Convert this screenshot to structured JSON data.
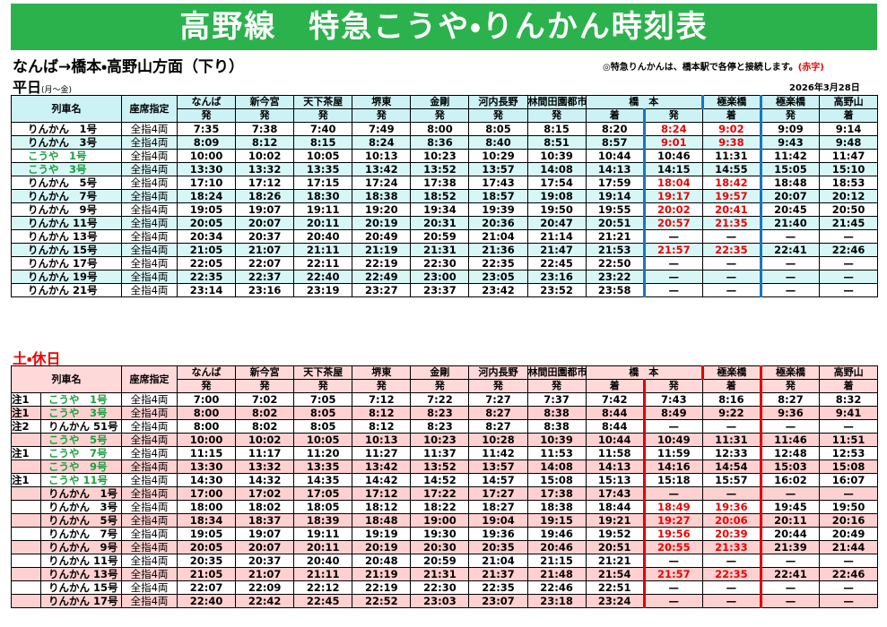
{
  "title": "高野線　特急こうや・りんかん時刻表",
  "direction": "なんば→橋本・高野山方面（下り）",
  "note": "◎特急りんかんは、橋本駅で各停と接続します。",
  "note_red": "(赤字)",
  "date": "2026年3月28日",
  "weekday": {
    "label": "平日",
    "sub": "(月～金)",
    "header": {
      "name": "列車名",
      "seat": "座席指定",
      "stations": [
        "なんば",
        "新今宮",
        "天下茶屋",
        "堺東",
        "金剛",
        "河内長野",
        "林間田園都市",
        "橋　本",
        "極楽橋",
        "極楽橋",
        "高野山"
      ],
      "dirs": [
        "発",
        "発",
        "発",
        "発",
        "発",
        "発",
        "発",
        "着",
        "発",
        "着",
        "発",
        "着"
      ]
    },
    "rows": [
      {
        "name": "りんかん　1号",
        "seat": "全指4両",
        "times": [
          "7:35",
          "7:38",
          "7:40",
          "7:49",
          "8:00",
          "8:05",
          "8:15",
          "8:20",
          "8:24",
          "9:02",
          "9:09",
          "9:14"
        ]
      },
      {
        "name": "りんかん　3号",
        "seat": "全指4両",
        "times": [
          "8:09",
          "8:12",
          "8:15",
          "8:24",
          "8:36",
          "8:40",
          "8:51",
          "8:57",
          "9:01",
          "9:38",
          "9:43",
          "9:48"
        ]
      },
      {
        "name": "こうや　1号",
        "seat": "全指4両",
        "times": [
          "10:00",
          "10:02",
          "10:05",
          "10:13",
          "10:23",
          "10:29",
          "10:39",
          "10:44",
          "10:46",
          "11:31",
          "11:42",
          "11:47"
        ]
      },
      {
        "name": "こうや　3号",
        "seat": "全指4両",
        "times": [
          "13:30",
          "13:32",
          "13:35",
          "13:42",
          "13:52",
          "13:57",
          "14:08",
          "14:13",
          "14:15",
          "14:55",
          "15:05",
          "15:10"
        ]
      },
      {
        "name": "りんかん　5号",
        "seat": "全指4両",
        "times": [
          "17:10",
          "17:12",
          "17:15",
          "17:24",
          "17:38",
          "17:43",
          "17:54",
          "17:59",
          "18:04",
          "18:42",
          "18:48",
          "18:53"
        ]
      },
      {
        "name": "りんかん　7号",
        "seat": "全指4両",
        "times": [
          "18:24",
          "18:26",
          "18:30",
          "18:38",
          "18:52",
          "18:57",
          "19:08",
          "19:14",
          "19:17",
          "19:57",
          "20:07",
          "20:12"
        ]
      },
      {
        "name": "りんかん　9号",
        "seat": "全指4両",
        "times": [
          "19:05",
          "19:07",
          "19:11",
          "19:20",
          "19:34",
          "19:39",
          "19:50",
          "19:55",
          "20:02",
          "20:41",
          "20:45",
          "20:50"
        ]
      },
      {
        "name": "りんかん 11号",
        "seat": "全指4両",
        "times": [
          "20:05",
          "20:07",
          "20:11",
          "20:19",
          "20:31",
          "20:36",
          "20:47",
          "20:51",
          "20:57",
          "21:35",
          "21:40",
          "21:45"
        ]
      },
      {
        "name": "りんかん 13号",
        "seat": "全指4両",
        "times": [
          "20:34",
          "20:37",
          "20:40",
          "20:49",
          "20:59",
          "21:04",
          "21:14",
          "21:21",
          "—",
          "—",
          "—",
          "—"
        ]
      },
      {
        "name": "りんかん 15号",
        "seat": "全指4両",
        "times": [
          "21:05",
          "21:07",
          "21:11",
          "21:19",
          "21:31",
          "21:36",
          "21:47",
          "21:53",
          "21:57",
          "22:35",
          "22:41",
          "22:46"
        ]
      },
      {
        "name": "りんかん 17号",
        "seat": "全指4両",
        "times": [
          "22:05",
          "22:07",
          "22:11",
          "22:19",
          "22:30",
          "22:35",
          "22:45",
          "22:50",
          "—",
          "—",
          "—",
          "—"
        ]
      },
      {
        "name": "りんかん 19号",
        "seat": "全指4両",
        "times": [
          "22:35",
          "22:37",
          "22:40",
          "22:49",
          "23:00",
          "23:05",
          "23:16",
          "23:22",
          "—",
          "—",
          "—",
          "—"
        ]
      },
      {
        "name": "りんかん 21号",
        "seat": "全指4両",
        "times": [
          "23:14",
          "23:16",
          "23:19",
          "23:27",
          "23:37",
          "23:42",
          "23:52",
          "23:58",
          "—",
          "—",
          "—",
          "—"
        ]
      }
    ]
  },
  "holiday": {
    "label": "土・休日",
    "header": {
      "name": "列車名",
      "seat": "座席指定",
      "stations": [
        "なんば",
        "新今宮",
        "天下茶屋",
        "堺東",
        "金剛",
        "河内長野",
        "林間田園都市",
        "橋　本",
        "極楽橋",
        "極楽橋",
        "高野山"
      ],
      "dirs": [
        "発",
        "発",
        "発",
        "発",
        "発",
        "発",
        "発",
        "着",
        "発",
        "着",
        "発",
        "着"
      ]
    },
    "rows": [
      {
        "note": "注1",
        "name": "こうや　1号",
        "seat": "全指4両",
        "times": [
          "7:00",
          "7:02",
          "7:05",
          "7:12",
          "7:22",
          "7:27",
          "7:37",
          "7:42",
          "7:43",
          "8:16",
          "8:27",
          "8:32"
        ]
      },
      {
        "note": "注1",
        "name": "こうや　3号",
        "seat": "全指4両",
        "times": [
          "8:00",
          "8:02",
          "8:05",
          "8:12",
          "8:23",
          "8:27",
          "8:38",
          "8:44",
          "8:49",
          "9:22",
          "9:36",
          "9:41"
        ]
      },
      {
        "note": "注2",
        "name": "りんかん 51号",
        "seat": "全指4両",
        "times": [
          "8:00",
          "8:02",
          "8:05",
          "8:12",
          "8:23",
          "8:27",
          "8:38",
          "8:44",
          "—",
          "—",
          "—",
          "—"
        ]
      },
      {
        "note": null,
        "name": "こうや　5号",
        "seat": "全指4両",
        "times": [
          "10:00",
          "10:02",
          "10:05",
          "10:13",
          "10:23",
          "10:28",
          "10:39",
          "10:44",
          "10:49",
          "11:31",
          "11:46",
          "11:51"
        ]
      },
      {
        "note": "注1",
        "name": "こうや　7号",
        "seat": "全指4両",
        "times": [
          "11:15",
          "11:17",
          "11:20",
          "11:27",
          "11:37",
          "11:42",
          "11:53",
          "11:58",
          "11:59",
          "12:33",
          "12:48",
          "12:53"
        ]
      },
      {
        "note": null,
        "name": "こうや　9号",
        "seat": "全指4両",
        "times": [
          "13:30",
          "13:32",
          "13:35",
          "13:42",
          "13:52",
          "13:57",
          "14:08",
          "14:13",
          "14:16",
          "14:54",
          "15:03",
          "15:08"
        ]
      },
      {
        "note": "注1",
        "name": "こうや 11号",
        "seat": "全指4両",
        "times": [
          "14:30",
          "14:32",
          "14:35",
          "14:42",
          "14:52",
          "14:57",
          "15:08",
          "15:13",
          "15:18",
          "15:57",
          "16:02",
          "16:07"
        ]
      },
      {
        "note": null,
        "name": "りんかん　1号",
        "seat": "全指4両",
        "times": [
          "17:00",
          "17:02",
          "17:05",
          "17:12",
          "17:22",
          "17:27",
          "17:38",
          "17:43",
          "—",
          "—",
          "—",
          "—"
        ]
      },
      {
        "note": null,
        "name": "りんかん　3号",
        "seat": "全指4両",
        "times": [
          "18:00",
          "18:02",
          "18:05",
          "18:12",
          "18:22",
          "18:27",
          "18:38",
          "18:44",
          "18:49",
          "19:36",
          "19:45",
          "19:50"
        ]
      },
      {
        "note": null,
        "name": "りんかん　5号",
        "seat": "全指4両",
        "times": [
          "18:34",
          "18:37",
          "18:39",
          "18:48",
          "19:00",
          "19:04",
          "19:15",
          "19:21",
          "19:27",
          "20:06",
          "20:11",
          "20:16"
        ]
      },
      {
        "note": null,
        "name": "りんかん　7号",
        "seat": "全指4両",
        "times": [
          "19:05",
          "19:07",
          "19:11",
          "19:19",
          "19:30",
          "19:36",
          "19:46",
          "19:52",
          "19:56",
          "20:39",
          "20:44",
          "20:49"
        ]
      },
      {
        "note": null,
        "name": "りんかん　9号",
        "seat": "全指4両",
        "times": [
          "20:05",
          "20:07",
          "20:11",
          "20:19",
          "20:30",
          "20:35",
          "20:46",
          "20:51",
          "20:55",
          "21:33",
          "21:39",
          "21:44"
        ]
      },
      {
        "note": null,
        "name": "りんかん 11号",
        "seat": "全指4両",
        "times": [
          "20:35",
          "20:37",
          "20:40",
          "20:48",
          "20:59",
          "21:04",
          "21:15",
          "21:21",
          "—",
          "—",
          "—",
          "—"
        ]
      },
      {
        "note": null,
        "name": "りんかん 13号",
        "seat": "全指4両",
        "times": [
          "21:05",
          "21:07",
          "21:11",
          "21:19",
          "21:31",
          "21:37",
          "21:48",
          "21:54",
          "21:57",
          "22:35",
          "22:41",
          "22:46"
        ]
      },
      {
        "note": null,
        "name": "りんかん 15号",
        "seat": "全指4両",
        "times": [
          "22:07",
          "22:09",
          "22:12",
          "22:19",
          "22:30",
          "22:35",
          "22:46",
          "22:51",
          "—",
          "—",
          "—",
          "—"
        ]
      },
      {
        "note": null,
        "name": "りんかん 17号",
        "seat": "全指4両",
        "times": [
          "22:40",
          "22:42",
          "22:45",
          "22:52",
          "23:03",
          "23:07",
          "23:18",
          "23:24",
          "—",
          "—",
          "—",
          "—"
        ]
      }
    ]
  }
}
